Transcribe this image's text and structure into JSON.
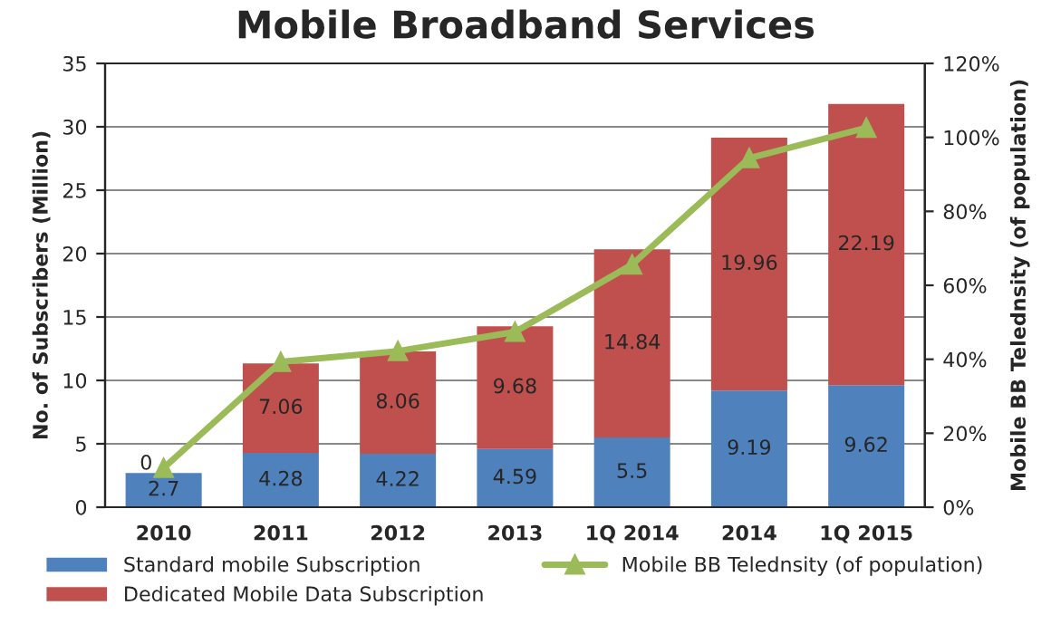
{
  "chart_data": {
    "type": "bar",
    "title": "Mobile Broadband Services",
    "ylabel": "No. of Subscribers (Million)",
    "y2label": "Mobile BB Telednsity (of population)",
    "categories": [
      "2010",
      "2011",
      "2012",
      "2013",
      "1Q 2014",
      "2014",
      "1Q 2015"
    ],
    "stacked": true,
    "grid": "y",
    "legend": "bottom",
    "ylim": [
      0,
      35
    ],
    "yticks": [
      0,
      5,
      10,
      15,
      20,
      25,
      30,
      35
    ],
    "y2lim": [
      0,
      120
    ],
    "y2ticks": [
      {
        "value": 0,
        "label": "0%"
      },
      {
        "value": 20,
        "label": "20%"
      },
      {
        "value": 40,
        "label": "40%"
      },
      {
        "value": 60,
        "label": "60%"
      },
      {
        "value": 80,
        "label": "80%"
      },
      {
        "value": 100,
        "label": "100%"
      },
      {
        "value": 120,
        "label": "120%"
      }
    ],
    "series": [
      {
        "name": "Standard mobile Subscription",
        "color": "#4f81bd",
        "values": [
          2.7,
          4.28,
          4.22,
          4.59,
          5.5,
          9.19,
          9.62
        ],
        "value_labels": [
          "2.7",
          "4.28",
          "4.22",
          "4.59",
          "5.5",
          "9.19",
          "9.62"
        ]
      },
      {
        "name": "Dedicated Mobile Data Subscription",
        "color": "#c0504d",
        "values": [
          0,
          7.06,
          8.06,
          9.68,
          14.84,
          19.96,
          22.19
        ],
        "value_labels": [
          "0",
          "7.06",
          "8.06",
          "9.68",
          "14.84",
          "19.96",
          "22.19"
        ]
      },
      {
        "name": "Mobile BB Telednsity (of population)",
        "type": "line",
        "axis": "y2",
        "color": "#9bbb59",
        "marker": "triangle",
        "values": [
          10.6,
          39.3,
          42.2,
          47.4,
          65.6,
          94.4,
          102.6
        ]
      }
    ]
  }
}
